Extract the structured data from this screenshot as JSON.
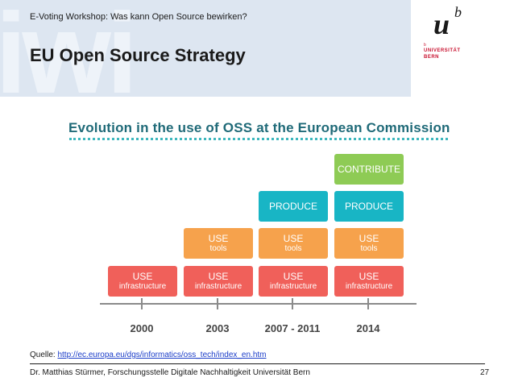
{
  "slide": {
    "subtitle": "E-Voting Workshop: Was kann Open Source bewirken?",
    "title": "EU Open Source Strategy",
    "watermark": "iwi",
    "logo": {
      "mark_u": "u",
      "mark_b": "b",
      "small": "b",
      "line1": "UNIVERSITÄT",
      "line2": "BERN"
    }
  },
  "figure": {
    "title": "Evolution in the use of OSS at the European Commission",
    "colors": {
      "use_infrastructure": "#f0605a",
      "use_tools": "#f6a24c",
      "produce": "#18b5c5",
      "contribute": "#8ecb55"
    },
    "columns": [
      {
        "year": "2000",
        "boxes": [
          {
            "l1": "USE",
            "l2": "infrastructure",
            "kind": "red"
          }
        ]
      },
      {
        "year": "2003",
        "boxes": [
          {
            "l1": "USE",
            "l2": "infrastructure",
            "kind": "red"
          },
          {
            "l1": "USE",
            "l2": "tools",
            "kind": "orange"
          }
        ]
      },
      {
        "year": "2007 - 2011",
        "boxes": [
          {
            "l1": "USE",
            "l2": "infrastructure",
            "kind": "red"
          },
          {
            "l1": "USE",
            "l2": "tools",
            "kind": "orange"
          },
          {
            "l1": "PRODUCE",
            "l2": "",
            "kind": "teal"
          }
        ]
      },
      {
        "year": "2014",
        "boxes": [
          {
            "l1": "USE",
            "l2": "infrastructure",
            "kind": "red"
          },
          {
            "l1": "USE",
            "l2": "tools",
            "kind": "orange"
          },
          {
            "l1": "PRODUCE",
            "l2": "",
            "kind": "teal"
          },
          {
            "l1": "CONTRIBUTE",
            "l2": "",
            "kind": "green"
          }
        ]
      }
    ]
  },
  "source": {
    "label": "Quelle: ",
    "url": "http://ec.europa.eu/dgs/informatics/oss_tech/index_en.htm"
  },
  "footer": {
    "text": "Dr. Matthias Stürmer, Forschungsstelle Digitale Nachhaltigkeit Universität Bern",
    "page": "27"
  }
}
